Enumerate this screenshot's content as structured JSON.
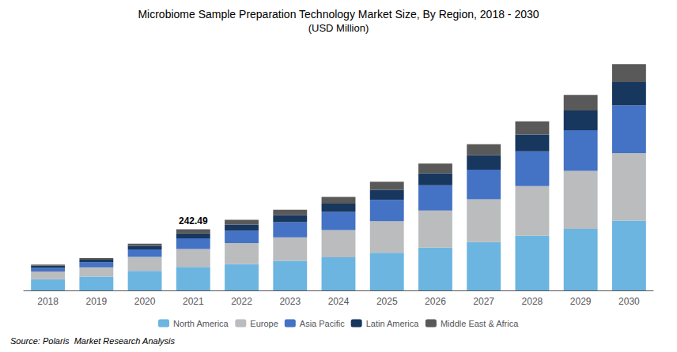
{
  "chart_data": {
    "type": "bar",
    "stacked": true,
    "title": "Microbiome Sample Preparation Technology Market Size, By Region, 2018 - 2030",
    "subtitle": "(USD Million)",
    "source": "Source: Polaris  Market Research Analysis",
    "categories": [
      "2018",
      "2019",
      "2020",
      "2021",
      "2022",
      "2023",
      "2024",
      "2025",
      "2026",
      "2027",
      "2028",
      "2029",
      "2030"
    ],
    "series": [
      {
        "name": "North America",
        "color": "#6BB5E0",
        "values": [
          45,
          55,
          78,
          93,
          105,
          118,
          132,
          150,
          170,
          192,
          217,
          245,
          278
        ]
      },
      {
        "name": "Europe",
        "color": "#BABCBE",
        "values": [
          30,
          37,
          55,
          72,
          83,
          93,
          108,
          125,
          148,
          170,
          198,
          230,
          268
        ]
      },
      {
        "name": "Asia Pacific",
        "color": "#4472C4",
        "values": [
          15,
          20,
          30,
          42,
          50,
          60,
          72,
          85,
          100,
          118,
          138,
          162,
          190
        ]
      },
      {
        "name": "Latin America",
        "color": "#17375E",
        "values": [
          8,
          10,
          14,
          20,
          24,
          28,
          33,
          40,
          48,
          57,
          67,
          78,
          92
        ]
      },
      {
        "name": "Middle East & Africa",
        "color": "#595959",
        "values": [
          5,
          7,
          9,
          16,
          19,
          22,
          27,
          32,
          38,
          44,
          52,
          62,
          72
        ]
      }
    ],
    "annotations": [
      {
        "text": "242.49",
        "x": "2021"
      }
    ],
    "ylim": [
      0,
      960
    ],
    "grid": false,
    "legend": "bottom",
    "tick_labels": "x"
  }
}
